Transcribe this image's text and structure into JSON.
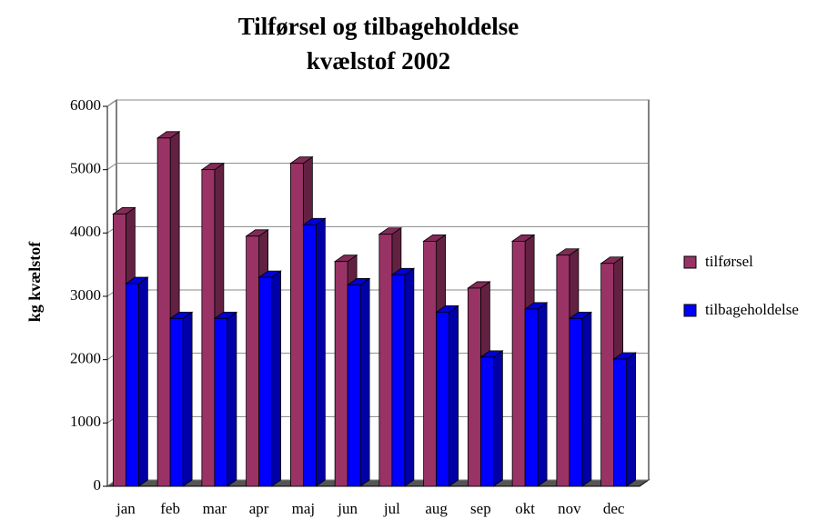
{
  "chart_data": {
    "type": "bar3d",
    "title": [
      "Tilførsel og tilbageholdelse",
      "kvælstof 2002"
    ],
    "y_label": "kg kvælstof",
    "categories": [
      "jan",
      "feb",
      "mar",
      "apr",
      "maj",
      "jun",
      "jul",
      "aug",
      "sep",
      "okt",
      "nov",
      "dec"
    ],
    "series": [
      {
        "name": "tilførsel",
        "color": "#993366",
        "values": [
          4300,
          5500,
          5000,
          3950,
          5100,
          3550,
          3980,
          3870,
          3130,
          3870,
          3650,
          3520
        ]
      },
      {
        "name": "tilbageholdelse",
        "color": "#0000ff",
        "values": [
          3200,
          2650,
          2650,
          3300,
          4130,
          3180,
          3340,
          2750,
          2040,
          2800,
          2650,
          2010
        ]
      }
    ],
    "ylim": [
      0,
      6000
    ],
    "yticks": [
      0,
      1000,
      2000,
      3000,
      4000,
      5000,
      6000
    ],
    "grid": true,
    "legend": "right"
  }
}
